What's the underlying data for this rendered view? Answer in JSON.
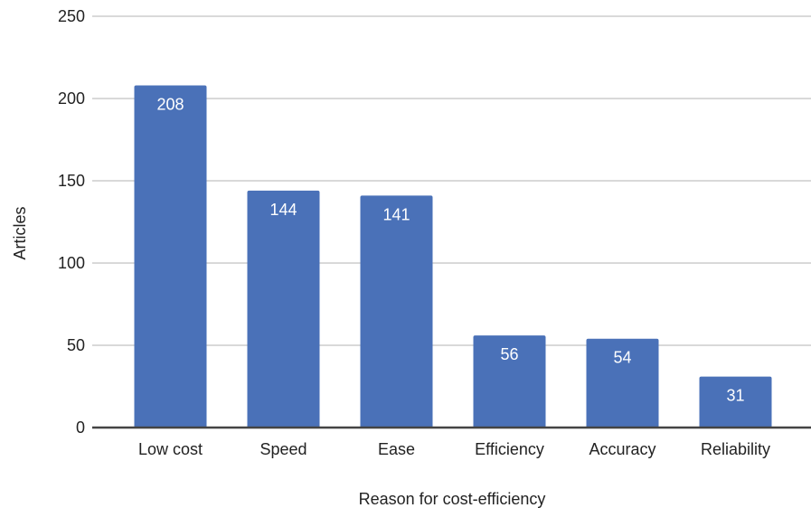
{
  "chart_data": {
    "type": "bar",
    "categories": [
      "Low cost",
      "Speed",
      "Ease",
      "Efficiency",
      "Accuracy",
      "Reliability"
    ],
    "values": [
      208,
      144,
      141,
      56,
      54,
      31
    ],
    "data_labels": [
      "208",
      "144",
      "141",
      "56",
      "54",
      "31"
    ],
    "yticks": [
      "0",
      "50",
      "100",
      "150",
      "200",
      "250"
    ],
    "ylim": [
      0,
      250
    ],
    "xlabel": "Reason for cost-efficiency",
    "ylabel": "Articles",
    "grid": true,
    "bar_color": "#4a71b8",
    "grid_color": "#d9d9d9",
    "axis_color": "#444444"
  }
}
